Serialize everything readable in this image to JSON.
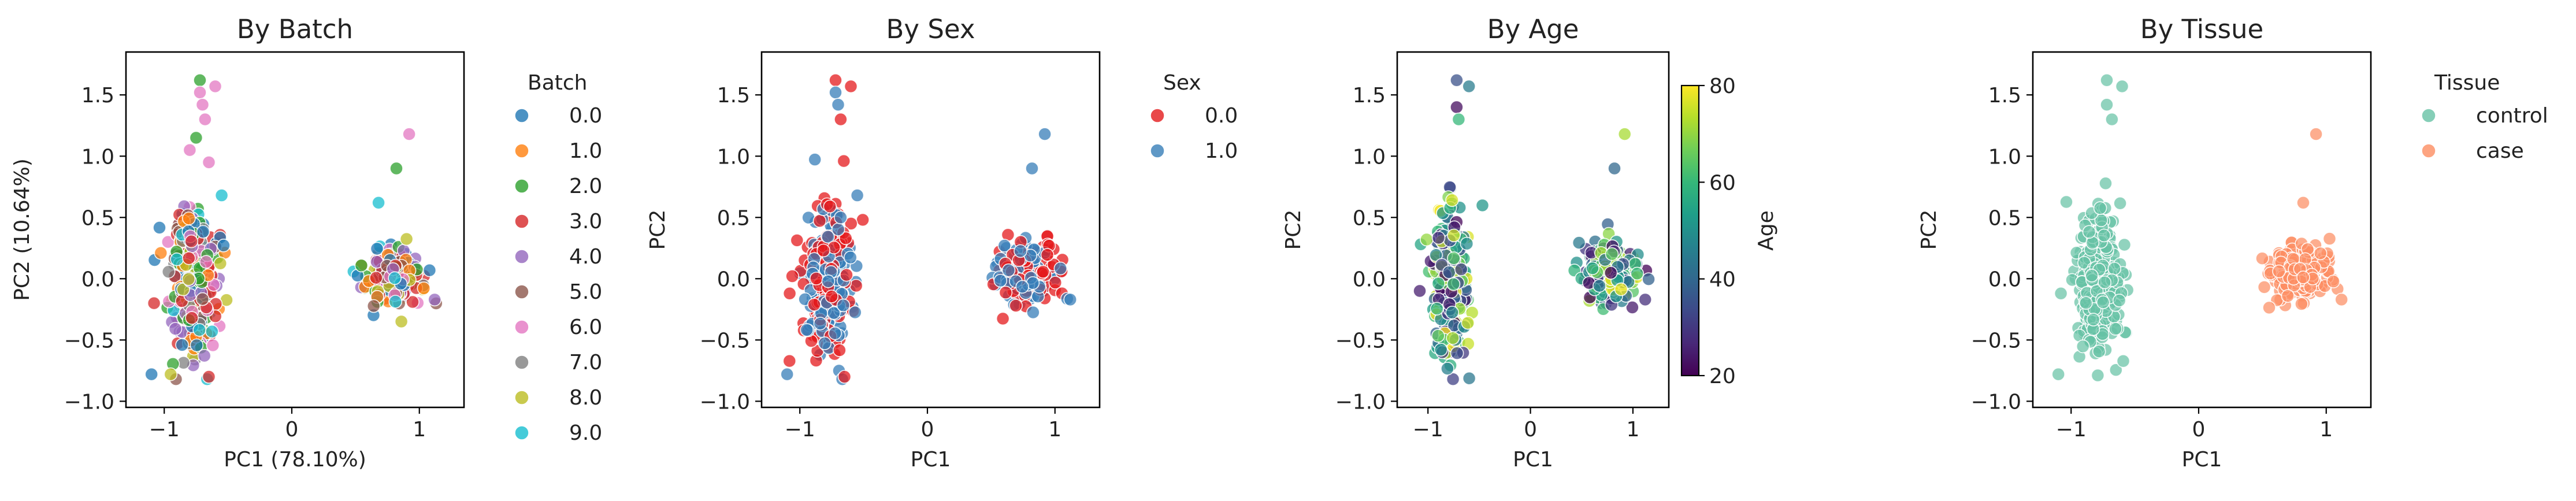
{
  "chart_data": [
    {
      "type": "scatter",
      "title": "By Batch",
      "xlabel": "PC1 (78.10%)",
      "ylabel": "PC2 (10.64%)",
      "xlim": [
        -1.3,
        1.35
      ],
      "ylim": [
        -1.05,
        1.85
      ],
      "xticks": [
        -1,
        0,
        1
      ],
      "xtick_labels": [
        "−1",
        "0",
        "1"
      ],
      "yticks": [
        -1.0,
        -0.5,
        0.0,
        0.5,
        1.0,
        1.5
      ],
      "ytick_labels": [
        "−1.0",
        "−0.5",
        "0.0",
        "0.5",
        "1.0",
        "1.5"
      ],
      "grid": false,
      "legend": {
        "title": "Batch",
        "placement": "outside-right",
        "entries": [
          "0.0",
          "1.0",
          "2.0",
          "3.0",
          "4.0",
          "5.0",
          "6.0",
          "7.0",
          "8.0",
          "9.0"
        ],
        "colors": [
          "#1f77b4",
          "#ff7f0e",
          "#2ca02c",
          "#d62728",
          "#9467bd",
          "#8c564b",
          "#e377c2",
          "#7f7f7f",
          "#bcbd22",
          "#17becf"
        ]
      },
      "clusters": [
        {
          "center": [
            -0.78,
            -0.02
          ],
          "spread": [
            0.09,
            0.3
          ],
          "approx_n": 300
        },
        {
          "center": [
            0.78,
            0.05
          ],
          "spread": [
            0.12,
            0.12
          ],
          "approx_n": 180
        }
      ],
      "points": [
        {
          "x": -0.72,
          "y": 1.62,
          "color_index": 2
        },
        {
          "x": -0.6,
          "y": 1.57,
          "color_index": 6
        },
        {
          "x": -0.72,
          "y": 1.52,
          "color_index": 6
        },
        {
          "x": -0.7,
          "y": 1.42,
          "color_index": 6
        },
        {
          "x": -0.68,
          "y": 1.3,
          "color_index": 6
        },
        {
          "x": -0.75,
          "y": 1.15,
          "color_index": 2
        },
        {
          "x": -0.8,
          "y": 1.05,
          "color_index": 6
        },
        {
          "x": -0.65,
          "y": 0.95,
          "color_index": 6
        },
        {
          "x": -0.55,
          "y": 0.68,
          "color_index": 9
        },
        {
          "x": 0.92,
          "y": 1.18,
          "color_index": 6
        },
        {
          "x": 0.82,
          "y": 0.9,
          "color_index": 2
        },
        {
          "x": 0.68,
          "y": 0.62,
          "color_index": 9
        },
        {
          "x": -1.1,
          "y": -0.78,
          "color_index": 0
        },
        {
          "x": -0.95,
          "y": -0.78,
          "color_index": 8
        },
        {
          "x": -0.65,
          "y": -0.8,
          "color_index": 3
        },
        {
          "x": -1.08,
          "y": -0.2,
          "color_index": 3
        },
        {
          "x": 1.12,
          "y": -0.17,
          "color_index": 4
        }
      ]
    },
    {
      "type": "scatter",
      "title": "By Sex",
      "xlabel": "PC1",
      "ylabel": "PC2",
      "xlim": [
        -1.3,
        1.35
      ],
      "ylim": [
        -1.05,
        1.85
      ],
      "xticks": [
        -1,
        0,
        1
      ],
      "xtick_labels": [
        "−1",
        "0",
        "1"
      ],
      "yticks": [
        -1.0,
        -0.5,
        0.0,
        0.5,
        1.0,
        1.5
      ],
      "ytick_labels": [
        "−1.0",
        "−0.5",
        "0.0",
        "0.5",
        "1.0",
        "1.5"
      ],
      "grid": false,
      "legend": {
        "title": "Sex",
        "placement": "outside-right",
        "entries": [
          "0.0",
          "1.0"
        ],
        "colors": [
          "#e41a1c",
          "#377eb8"
        ]
      },
      "clusters": [
        {
          "center": [
            -0.78,
            -0.02
          ],
          "spread": [
            0.09,
            0.3
          ],
          "approx_n": 300
        },
        {
          "center": [
            0.78,
            0.05
          ],
          "spread": [
            0.12,
            0.12
          ],
          "approx_n": 180
        }
      ],
      "points": [
        {
          "x": -0.72,
          "y": 1.62,
          "color_index": 0
        },
        {
          "x": -0.6,
          "y": 1.57,
          "color_index": 0
        },
        {
          "x": -0.72,
          "y": 1.52,
          "color_index": 1
        },
        {
          "x": -0.7,
          "y": 1.42,
          "color_index": 1
        },
        {
          "x": -0.68,
          "y": 1.3,
          "color_index": 0
        },
        {
          "x": 0.92,
          "y": 1.18,
          "color_index": 1
        },
        {
          "x": 0.82,
          "y": 0.9,
          "color_index": 1
        },
        {
          "x": -0.55,
          "y": 0.68,
          "color_index": 1
        },
        {
          "x": -1.1,
          "y": -0.78,
          "color_index": 1
        },
        {
          "x": -0.65,
          "y": -0.8,
          "color_index": 0
        },
        {
          "x": -1.08,
          "y": -0.12,
          "color_index": 0
        },
        {
          "x": 1.12,
          "y": -0.17,
          "color_index": 1
        }
      ]
    },
    {
      "type": "scatter",
      "title": "By Age",
      "xlabel": "PC1",
      "ylabel": "PC2",
      "xlim": [
        -1.3,
        1.35
      ],
      "ylim": [
        -1.05,
        1.85
      ],
      "xticks": [
        -1,
        0,
        1
      ],
      "xtick_labels": [
        "−1",
        "0",
        "1"
      ],
      "yticks": [
        -1.0,
        -0.5,
        0.0,
        0.5,
        1.0,
        1.5
      ],
      "ytick_labels": [
        "−1.0",
        "−0.5",
        "0.0",
        "0.5",
        "1.0",
        "1.5"
      ],
      "grid": false,
      "colorbar": {
        "label": "Age",
        "colormap": "viridis",
        "range": [
          20,
          80
        ],
        "ticks": [
          20,
          40,
          60,
          80
        ],
        "tick_labels": [
          "20",
          "40",
          "60",
          "80"
        ],
        "stops": [
          "#440154",
          "#482878",
          "#3e4989",
          "#31688e",
          "#26828e",
          "#1f9e89",
          "#35b779",
          "#6ece58",
          "#b5de2b",
          "#fde725"
        ]
      },
      "clusters": [
        {
          "center": [
            -0.78,
            -0.02
          ],
          "spread": [
            0.09,
            0.3
          ],
          "approx_n": 300
        },
        {
          "center": [
            0.78,
            0.05
          ],
          "spread": [
            0.12,
            0.12
          ],
          "approx_n": 180
        }
      ],
      "points": [
        {
          "x": -0.72,
          "y": 1.62,
          "age": 35
        },
        {
          "x": -0.6,
          "y": 1.57,
          "age": 45
        },
        {
          "x": -0.72,
          "y": 1.4,
          "age": 22
        },
        {
          "x": -0.7,
          "y": 1.3,
          "age": 60
        },
        {
          "x": 0.92,
          "y": 1.18,
          "age": 72
        },
        {
          "x": 0.82,
          "y": 0.9,
          "age": 40
        },
        {
          "x": -1.08,
          "y": -0.1,
          "age": 25
        },
        {
          "x": 1.12,
          "y": -0.17,
          "age": 28
        }
      ]
    },
    {
      "type": "scatter",
      "title": "By Tissue",
      "xlabel": "PC1",
      "ylabel": "PC2",
      "xlim": [
        -1.3,
        1.35
      ],
      "ylim": [
        -1.05,
        1.85
      ],
      "xticks": [
        -1,
        0,
        1
      ],
      "xtick_labels": [
        "−1",
        "0",
        "1"
      ],
      "yticks": [
        -1.0,
        -0.5,
        0.0,
        0.5,
        1.0,
        1.5
      ],
      "ytick_labels": [
        "−1.0",
        "−0.5",
        "0.0",
        "0.5",
        "1.0",
        "1.5"
      ],
      "grid": false,
      "legend": {
        "title": "Tissue",
        "placement": "outside-right",
        "entries": [
          "control",
          "case"
        ],
        "colors": [
          "#66c2a5",
          "#fc8d62"
        ]
      },
      "clusters": [
        {
          "label": "control",
          "center": [
            -0.78,
            -0.02
          ],
          "spread": [
            0.09,
            0.3
          ],
          "approx_n": 300
        },
        {
          "label": "case",
          "center": [
            0.78,
            0.05
          ],
          "spread": [
            0.12,
            0.12
          ],
          "approx_n": 180
        }
      ],
      "points": [
        {
          "x": -0.72,
          "y": 1.62,
          "color_index": 0
        },
        {
          "x": -0.6,
          "y": 1.57,
          "color_index": 0
        },
        {
          "x": -0.72,
          "y": 1.42,
          "color_index": 0
        },
        {
          "x": -0.68,
          "y": 1.3,
          "color_index": 0
        },
        {
          "x": -1.08,
          "y": -0.12,
          "color_index": 0
        },
        {
          "x": -1.1,
          "y": -0.78,
          "color_index": 0
        },
        {
          "x": 0.92,
          "y": 1.18,
          "color_index": 1
        },
        {
          "x": 0.82,
          "y": 0.62,
          "color_index": 1
        },
        {
          "x": 1.12,
          "y": -0.17,
          "color_index": 1
        }
      ]
    }
  ]
}
